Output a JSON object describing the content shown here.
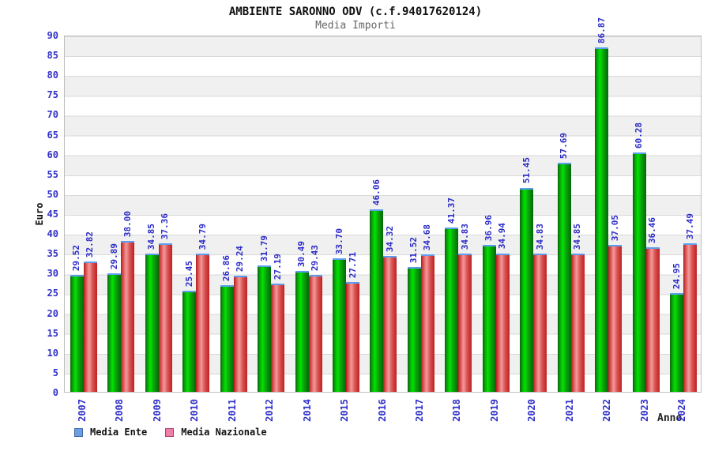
{
  "header": {
    "title": "AMBIENTE SARONNO ODV (c.f.94017620124)",
    "subtitle": "Media Importi"
  },
  "chart_data": {
    "type": "bar",
    "title": "AMBIENTE SARONNO ODV (c.f.94017620124)",
    "subtitle": "Media Importi",
    "xlabel": "Anno",
    "ylabel": "Euro",
    "ylim": [
      0,
      90
    ],
    "ytick_step": 5,
    "grid": "horizontal alternating bands gray/white every 5 units, gridline each 5",
    "legend_position": "bottom-left",
    "value_labels": "shown above each bar, rotated 90deg, two decimals, blue",
    "categories": [
      "2007",
      "2008",
      "2009",
      "2010",
      "2011",
      "2012",
      "2014",
      "2015",
      "2016",
      "2017",
      "2018",
      "2019",
      "2020",
      "2021",
      "2022",
      "2023",
      "2024"
    ],
    "series": [
      {
        "name": "Media Ente",
        "bar_color": "#00c800",
        "legend_swatch_color": "#6d9ee0",
        "values": [
          29.52,
          29.89,
          34.85,
          25.45,
          26.86,
          31.79,
          30.49,
          33.7,
          46.06,
          31.52,
          41.37,
          36.96,
          51.45,
          57.69,
          86.87,
          60.28,
          24.95
        ]
      },
      {
        "name": "Media Nazionale",
        "bar_color": "#e05050",
        "legend_swatch_color": "#ef7fa8",
        "values": [
          32.82,
          38.0,
          37.36,
          34.79,
          29.24,
          27.19,
          29.43,
          27.71,
          34.32,
          34.68,
          34.83,
          34.94,
          34.83,
          34.85,
          37.05,
          36.46,
          37.49
        ]
      }
    ]
  },
  "theme": {
    "axis_text_color": "#3030c8",
    "value_label_color": "#2a2ac8",
    "band_gray": "#f0f0f0",
    "bar_top_edge": "#5c9ded",
    "title_color": "#111111",
    "subtitle_color": "#666666"
  }
}
